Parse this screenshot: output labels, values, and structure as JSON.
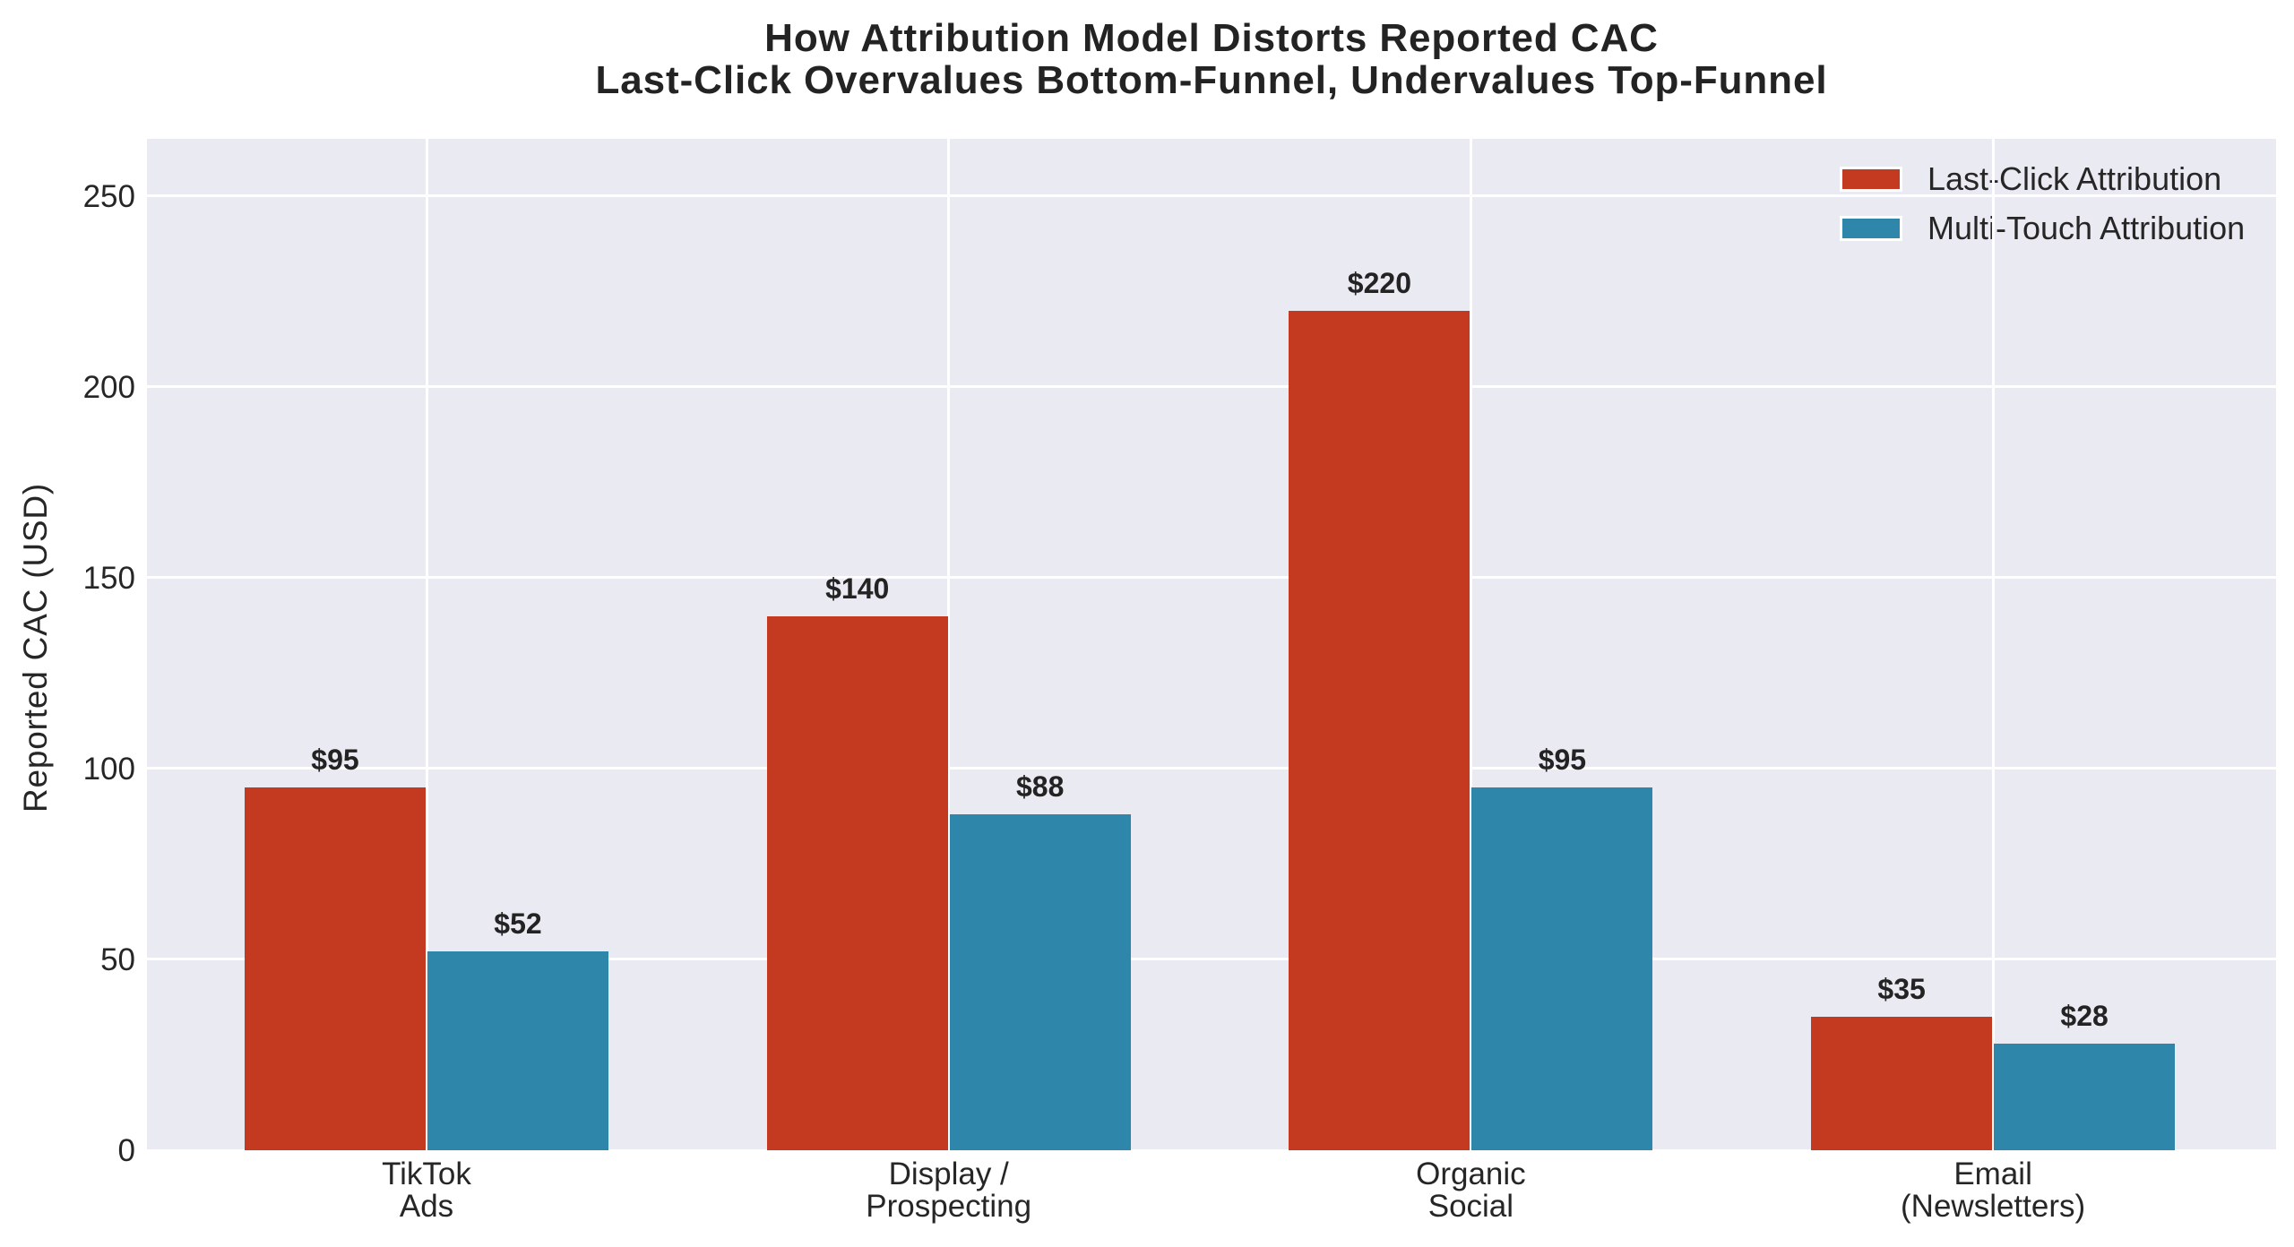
{
  "title": {
    "line1": "How Attribution Model Distorts Reported CAC",
    "line2": "Last-Click Overvalues Bottom-Funnel, Undervalues Top-Funnel"
  },
  "chart_data": {
    "type": "bar",
    "title": "How Attribution Model Distorts Reported CAC\nLast-Click Overvalues Bottom-Funnel, Undervalues Top-Funnel",
    "xlabel": "",
    "ylabel": "Reported CAC (USD)",
    "categories": [
      [
        "TikTok",
        "Ads"
      ],
      [
        "Display /",
        "Prospecting"
      ],
      [
        "Organic",
        "Social"
      ],
      [
        "Email",
        "(Newsletters)"
      ]
    ],
    "series": [
      {
        "name": "Last-Click Attribution",
        "color": "#C43A21",
        "values": [
          95,
          140,
          220,
          35
        ],
        "labels": [
          "$95",
          "$140",
          "$220",
          "$35"
        ]
      },
      {
        "name": "Multi-Touch Attribution",
        "color": "#2E86AB",
        "values": [
          52,
          88,
          95,
          28
        ],
        "labels": [
          "$52",
          "$88",
          "$95",
          "$28"
        ]
      }
    ],
    "ylim": [
      0,
      265
    ],
    "yticks": [
      0,
      50,
      100,
      150,
      200,
      250
    ],
    "grid": true,
    "plot_background": "#EAEAF2",
    "grid_color": "#FFFFFF",
    "legend_position": "upper right"
  }
}
